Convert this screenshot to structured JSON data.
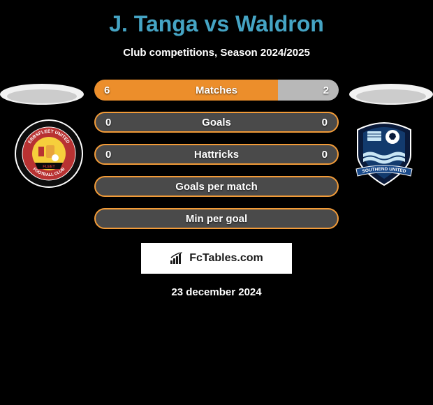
{
  "title": "J. Tanga vs Waldron",
  "subtitle": "Club competitions, Season 2024/2025",
  "colors": {
    "accent_title": "#45a4c4",
    "bar_bg": "#4a4a4a",
    "left_fill": "#ec8e2b",
    "right_fill": "#b8b8b8",
    "bar_border": "#f29b38",
    "background": "#000000",
    "text": "#ffffff"
  },
  "avatar": {
    "left_color": "#f2f2f2",
    "right_color": "#f2f2f2",
    "shadow": "#666666"
  },
  "badges": {
    "left": {
      "name": "ebbsfleet-united-badge",
      "outer_ring": "#0d0d0d",
      "inner_ring": "#b83232",
      "center": "#f6cf3c",
      "ring_text1": "EBBSFLEET UNITED",
      "ring_text2": "FOOTBALL CLUB",
      "banner_text": "FLEET"
    },
    "right": {
      "name": "southend-united-badge",
      "shield_outer": "#0a1a3a",
      "shield_inner": "#123a6d",
      "waves": "#c9e6f5",
      "ball": "#ffffff",
      "banner": "#1a4a8a",
      "banner_text": "SOUTHEND UNITED"
    }
  },
  "bars": [
    {
      "label": "Matches",
      "left": "6",
      "right": "2",
      "left_pct": 75,
      "right_pct": 25,
      "mode": "split",
      "border": false
    },
    {
      "label": "Goals",
      "left": "0",
      "right": "0",
      "left_pct": 0,
      "right_pct": 0,
      "mode": "empty",
      "border": true
    },
    {
      "label": "Hattricks",
      "left": "0",
      "right": "0",
      "left_pct": 0,
      "right_pct": 0,
      "mode": "empty",
      "border": true
    },
    {
      "label": "Goals per match",
      "left": "",
      "right": "",
      "left_pct": 0,
      "right_pct": 0,
      "mode": "labelonly",
      "border": true
    },
    {
      "label": "Min per goal",
      "left": "",
      "right": "",
      "left_pct": 0,
      "right_pct": 0,
      "mode": "labelonly",
      "border": true
    }
  ],
  "footer": {
    "brand": "FcTables.com",
    "date": "23 december 2024"
  }
}
